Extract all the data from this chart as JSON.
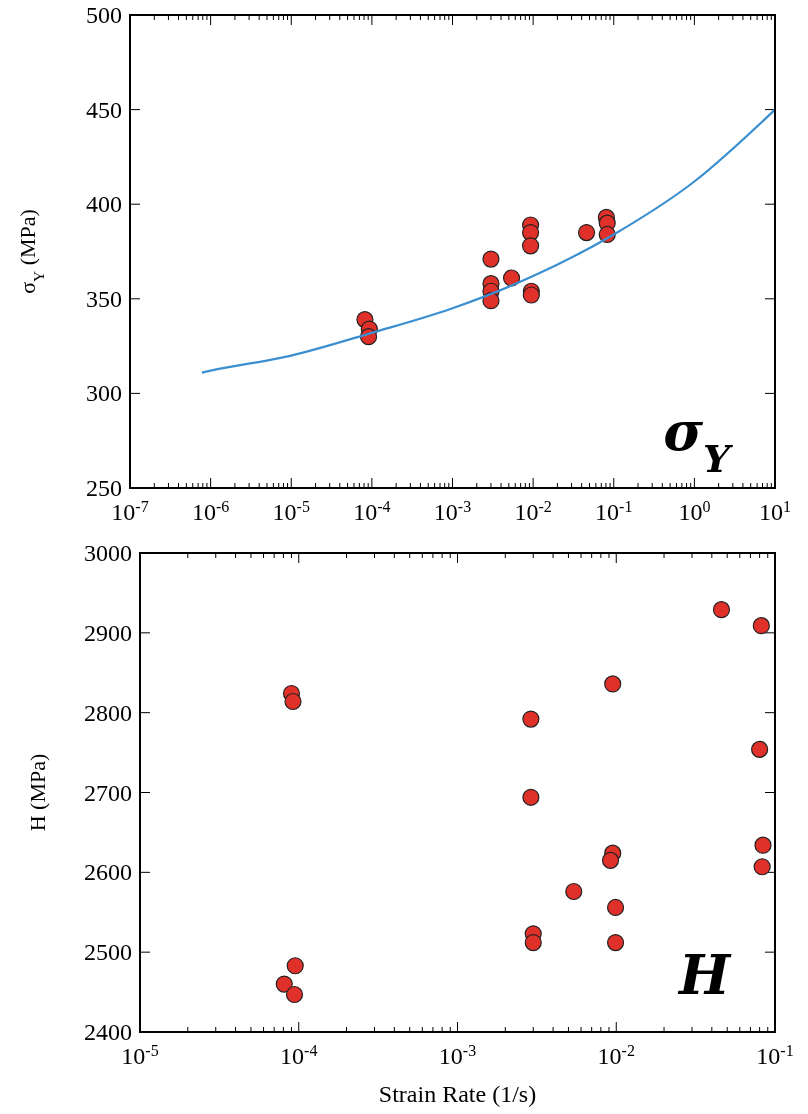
{
  "chart_data": [
    {
      "type": "scatter",
      "ylabel": "σ$_{Y}$ (MPa)",
      "annotations": [
        "σ$_{Y}$"
      ],
      "log": "x",
      "grid": false,
      "xlim": [
        1e-07,
        10
      ],
      "xticks": [
        {
          "value": 1e-07,
          "label": "10$^{-7}$"
        },
        {
          "value": 1e-06,
          "label": "10$^{-6}$"
        },
        {
          "value": 1e-05,
          "label": "10$^{-5}$"
        },
        {
          "value": 0.0001,
          "label": "10$^{-4}$"
        },
        {
          "value": 0.001,
          "label": "10$^{-3}$"
        },
        {
          "value": 0.01,
          "label": "10$^{-2}$"
        },
        {
          "value": 0.1,
          "label": "10$^{-1}$"
        },
        {
          "value": 1,
          "label": "10$^{0}$"
        },
        {
          "value": 10,
          "label": "10$^{1}$"
        }
      ],
      "ylim": [
        250,
        500
      ],
      "yticks": [
        250,
        300,
        350,
        400,
        450,
        500
      ],
      "series": [
        {
          "marker": "circle",
          "color": "#e0302a",
          "x": [
            8.2e-05,
            9.3e-05,
            9.1e-05,
            0.003,
            0.003,
            0.003,
            0.003,
            0.0054,
            0.0093,
            0.0093,
            0.0093,
            0.0095,
            0.0095,
            0.046,
            0.081,
            0.083,
            0.083
          ],
          "values": [
            339,
            334,
            330,
            371,
            358,
            354,
            349,
            361,
            389,
            385,
            378,
            354,
            352,
            385,
            393,
            390,
            384
          ]
        },
        {
          "type": "line",
          "color": "#3a8fd0",
          "x": [
            7.8e-07,
            1e-06,
            1e-05,
            0.0001,
            0.001,
            0.01,
            0.1,
            1,
            10
          ],
          "values": [
            311,
            312,
            320,
            332,
            345,
            362,
            384,
            412,
            450
          ]
        }
      ]
    },
    {
      "type": "scatter",
      "xlabel": "Strain Rate (1/s)",
      "ylabel": "H (MPa)",
      "annotations": [
        "H"
      ],
      "log": "x",
      "grid": false,
      "xlim": [
        1e-05,
        0.1
      ],
      "xticks": [
        {
          "value": 1e-05,
          "label": "10$^{-5}$"
        },
        {
          "value": 0.0001,
          "label": "10$^{-4}$"
        },
        {
          "value": 0.001,
          "label": "10$^{-3}$"
        },
        {
          "value": 0.01,
          "label": "10$^{-2}$"
        },
        {
          "value": 0.1,
          "label": "10$^{-1}$"
        }
      ],
      "ylim": [
        2400,
        3000
      ],
      "yticks": [
        2400,
        2500,
        2600,
        2700,
        2800,
        2900,
        3000
      ],
      "series": [
        {
          "marker": "circle",
          "color": "#e0302a",
          "x": [
            9e-05,
            9.2e-05,
            9.5e-05,
            8.1e-05,
            9.4e-05,
            0.0029,
            0.0029,
            0.003,
            0.003,
            0.0054,
            0.0095,
            0.0095,
            0.0092,
            0.0099,
            0.0099,
            0.046,
            0.082,
            0.08,
            0.084,
            0.083
          ],
          "values": [
            2824,
            2814,
            2483,
            2460,
            2447,
            2792,
            2694,
            2523,
            2512,
            2576,
            2836,
            2624,
            2615,
            2556,
            2512,
            2929,
            2909,
            2754,
            2634,
            2607
          ]
        }
      ]
    }
  ]
}
